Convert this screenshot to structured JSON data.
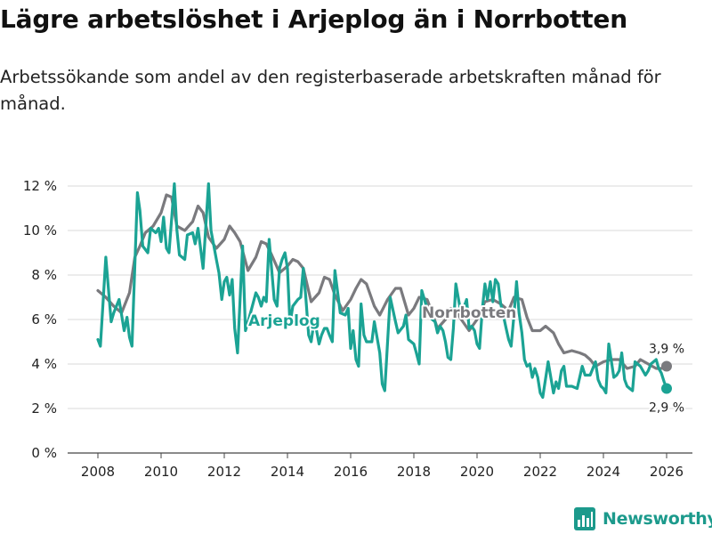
{
  "chart_data": {
    "type": "line",
    "title": "Lägre arbetslöshet i Arjeplog än i Norrbotten",
    "subtitle": "Arbetssökande som andel av den registerbaserade arbetskraften månad för månad.",
    "xlabel": "",
    "ylabel": "",
    "x_ticks": [
      "2008",
      "2010",
      "2012",
      "2014",
      "2016",
      "2018",
      "2020",
      "2022",
      "2024",
      "2026"
    ],
    "y_ticks": [
      "0 %",
      "2 %",
      "4 %",
      "6 %",
      "8 %",
      "10 %",
      "12 %"
    ],
    "xlim": [
      2007.5,
      2026.9
    ],
    "ylim": [
      0,
      12.5
    ],
    "grid": "horizontal",
    "legend": "inline labels",
    "series": [
      {
        "name": "Norrbotten",
        "color": "#7a7a7e",
        "end_label": "3,9 %",
        "points": [
          [
            2008.0,
            7.3
          ],
          [
            2008.25,
            7.0
          ],
          [
            2008.5,
            6.6
          ],
          [
            2008.75,
            6.3
          ],
          [
            2009.0,
            7.2
          ],
          [
            2009.17,
            8.8
          ],
          [
            2009.33,
            9.3
          ],
          [
            2009.5,
            9.9
          ],
          [
            2009.75,
            10.2
          ],
          [
            2010.0,
            10.8
          ],
          [
            2010.17,
            11.6
          ],
          [
            2010.33,
            11.5
          ],
          [
            2010.5,
            10.2
          ],
          [
            2010.75,
            10.0
          ],
          [
            2011.0,
            10.4
          ],
          [
            2011.17,
            11.1
          ],
          [
            2011.33,
            10.8
          ],
          [
            2011.5,
            9.7
          ],
          [
            2011.75,
            9.2
          ],
          [
            2012.0,
            9.6
          ],
          [
            2012.17,
            10.2
          ],
          [
            2012.33,
            9.9
          ],
          [
            2012.5,
            9.5
          ],
          [
            2012.75,
            8.2
          ],
          [
            2013.0,
            8.8
          ],
          [
            2013.17,
            9.5
          ],
          [
            2013.33,
            9.4
          ],
          [
            2013.5,
            8.9
          ],
          [
            2013.75,
            8.1
          ],
          [
            2014.0,
            8.4
          ],
          [
            2014.17,
            8.7
          ],
          [
            2014.33,
            8.6
          ],
          [
            2014.5,
            8.3
          ],
          [
            2014.75,
            6.8
          ],
          [
            2015.0,
            7.2
          ],
          [
            2015.17,
            7.9
          ],
          [
            2015.33,
            7.8
          ],
          [
            2015.5,
            7.1
          ],
          [
            2015.75,
            6.4
          ],
          [
            2016.0,
            6.9
          ],
          [
            2016.17,
            7.4
          ],
          [
            2016.33,
            7.8
          ],
          [
            2016.5,
            7.6
          ],
          [
            2016.75,
            6.6
          ],
          [
            2016.92,
            6.2
          ],
          [
            2017.17,
            6.9
          ],
          [
            2017.42,
            7.4
          ],
          [
            2017.58,
            7.4
          ],
          [
            2017.83,
            6.2
          ],
          [
            2018.0,
            6.5
          ],
          [
            2018.17,
            7.0
          ],
          [
            2018.42,
            6.9
          ],
          [
            2018.58,
            6.3
          ],
          [
            2018.75,
            5.6
          ],
          [
            2019.0,
            6.0
          ],
          [
            2019.17,
            6.5
          ],
          [
            2019.33,
            6.4
          ],
          [
            2019.5,
            6.0
          ],
          [
            2019.75,
            5.5
          ],
          [
            2020.0,
            6.0
          ],
          [
            2020.25,
            6.8
          ],
          [
            2020.5,
            6.9
          ],
          [
            2020.75,
            6.7
          ],
          [
            2021.0,
            6.4
          ],
          [
            2021.17,
            7.0
          ],
          [
            2021.42,
            6.9
          ],
          [
            2021.58,
            6.1
          ],
          [
            2021.75,
            5.5
          ],
          [
            2022.0,
            5.5
          ],
          [
            2022.17,
            5.7
          ],
          [
            2022.42,
            5.4
          ],
          [
            2022.58,
            4.9
          ],
          [
            2022.75,
            4.5
          ],
          [
            2023.0,
            4.6
          ],
          [
            2023.25,
            4.5
          ],
          [
            2023.42,
            4.4
          ],
          [
            2023.58,
            4.2
          ],
          [
            2023.75,
            3.9
          ],
          [
            2024.0,
            4.1
          ],
          [
            2024.25,
            4.2
          ],
          [
            2024.5,
            4.2
          ],
          [
            2024.75,
            3.8
          ],
          [
            2025.0,
            3.9
          ],
          [
            2025.17,
            4.2
          ],
          [
            2025.42,
            4.0
          ],
          [
            2025.67,
            3.8
          ],
          [
            2025.83,
            3.8
          ],
          [
            2026.0,
            3.9
          ]
        ]
      },
      {
        "name": "Arjeplog",
        "color": "#1ba394",
        "end_label": "2,9 %",
        "points": [
          [
            2008.0,
            5.1
          ],
          [
            2008.08,
            4.8
          ],
          [
            2008.25,
            8.8
          ],
          [
            2008.42,
            5.9
          ],
          [
            2008.5,
            6.3
          ],
          [
            2008.67,
            6.9
          ],
          [
            2008.83,
            5.5
          ],
          [
            2008.92,
            6.1
          ],
          [
            2009.0,
            5.2
          ],
          [
            2009.08,
            4.8
          ],
          [
            2009.25,
            11.7
          ],
          [
            2009.33,
            10.9
          ],
          [
            2009.42,
            9.3
          ],
          [
            2009.58,
            9.0
          ],
          [
            2009.67,
            10.1
          ],
          [
            2009.83,
            9.9
          ],
          [
            2009.92,
            10.1
          ],
          [
            2010.0,
            9.5
          ],
          [
            2010.08,
            10.6
          ],
          [
            2010.17,
            9.2
          ],
          [
            2010.25,
            9.0
          ],
          [
            2010.42,
            12.1
          ],
          [
            2010.5,
            10.0
          ],
          [
            2010.58,
            8.9
          ],
          [
            2010.75,
            8.7
          ],
          [
            2010.83,
            9.8
          ],
          [
            2011.0,
            9.9
          ],
          [
            2011.08,
            9.4
          ],
          [
            2011.17,
            10.1
          ],
          [
            2011.33,
            8.3
          ],
          [
            2011.5,
            12.1
          ],
          [
            2011.58,
            10.0
          ],
          [
            2011.75,
            8.7
          ],
          [
            2011.83,
            8.1
          ],
          [
            2011.92,
            6.9
          ],
          [
            2012.0,
            7.7
          ],
          [
            2012.08,
            7.9
          ],
          [
            2012.17,
            7.1
          ],
          [
            2012.25,
            7.8
          ],
          [
            2012.33,
            5.6
          ],
          [
            2012.42,
            4.5
          ],
          [
            2012.58,
            9.3
          ],
          [
            2012.67,
            5.5
          ],
          [
            2012.83,
            6.3
          ],
          [
            2013.0,
            7.2
          ],
          [
            2013.08,
            7.0
          ],
          [
            2013.17,
            6.6
          ],
          [
            2013.25,
            7.0
          ],
          [
            2013.33,
            6.8
          ],
          [
            2013.42,
            9.6
          ],
          [
            2013.58,
            6.9
          ],
          [
            2013.67,
            6.6
          ],
          [
            2013.75,
            8.3
          ],
          [
            2013.83,
            8.7
          ],
          [
            2013.92,
            9.0
          ],
          [
            2014.0,
            8.3
          ],
          [
            2014.08,
            5.8
          ],
          [
            2014.17,
            6.6
          ],
          [
            2014.33,
            6.9
          ],
          [
            2014.42,
            7.0
          ],
          [
            2014.5,
            8.3
          ],
          [
            2014.58,
            7.0
          ],
          [
            2014.67,
            5.3
          ],
          [
            2014.75,
            5.0
          ],
          [
            2014.83,
            5.8
          ],
          [
            2014.92,
            5.5
          ],
          [
            2015.0,
            4.9
          ],
          [
            2015.08,
            5.3
          ],
          [
            2015.17,
            5.6
          ],
          [
            2015.25,
            5.6
          ],
          [
            2015.33,
            5.3
          ],
          [
            2015.42,
            5.0
          ],
          [
            2015.5,
            8.2
          ],
          [
            2015.67,
            6.3
          ],
          [
            2015.83,
            6.2
          ],
          [
            2015.92,
            6.5
          ],
          [
            2016.0,
            4.7
          ],
          [
            2016.08,
            5.5
          ],
          [
            2016.17,
            4.2
          ],
          [
            2016.25,
            3.9
          ],
          [
            2016.33,
            6.7
          ],
          [
            2016.42,
            5.3
          ],
          [
            2016.5,
            5.0
          ],
          [
            2016.67,
            5.0
          ],
          [
            2016.75,
            5.9
          ],
          [
            2016.92,
            4.5
          ],
          [
            2017.0,
            3.1
          ],
          [
            2017.08,
            2.8
          ],
          [
            2017.25,
            7.0
          ],
          [
            2017.42,
            5.9
          ],
          [
            2017.5,
            5.4
          ],
          [
            2017.67,
            5.7
          ],
          [
            2017.75,
            6.2
          ],
          [
            2017.83,
            5.1
          ],
          [
            2018.0,
            4.9
          ],
          [
            2018.08,
            4.5
          ],
          [
            2018.17,
            4.0
          ],
          [
            2018.25,
            7.3
          ],
          [
            2018.42,
            6.5
          ],
          [
            2018.5,
            6.1
          ],
          [
            2018.67,
            5.9
          ],
          [
            2018.75,
            5.4
          ],
          [
            2018.83,
            5.7
          ],
          [
            2018.92,
            5.5
          ],
          [
            2019.0,
            5.0
          ],
          [
            2019.08,
            4.3
          ],
          [
            2019.17,
            4.2
          ],
          [
            2019.25,
            5.6
          ],
          [
            2019.33,
            7.6
          ],
          [
            2019.5,
            6.2
          ],
          [
            2019.67,
            6.9
          ],
          [
            2019.75,
            5.6
          ],
          [
            2019.83,
            5.7
          ],
          [
            2019.92,
            5.5
          ],
          [
            2020.0,
            4.9
          ],
          [
            2020.08,
            4.7
          ],
          [
            2020.17,
            6.5
          ],
          [
            2020.25,
            7.6
          ],
          [
            2020.33,
            6.9
          ],
          [
            2020.42,
            7.7
          ],
          [
            2020.5,
            6.8
          ],
          [
            2020.58,
            7.8
          ],
          [
            2020.67,
            7.6
          ],
          [
            2020.75,
            6.7
          ],
          [
            2020.83,
            6.2
          ],
          [
            2020.92,
            5.6
          ],
          [
            2021.0,
            5.1
          ],
          [
            2021.08,
            4.8
          ],
          [
            2021.17,
            6.2
          ],
          [
            2021.25,
            7.7
          ],
          [
            2021.33,
            6.3
          ],
          [
            2021.42,
            5.4
          ],
          [
            2021.5,
            4.2
          ],
          [
            2021.58,
            3.9
          ],
          [
            2021.67,
            4.0
          ],
          [
            2021.75,
            3.4
          ],
          [
            2021.83,
            3.8
          ],
          [
            2021.92,
            3.4
          ],
          [
            2022.0,
            2.7
          ],
          [
            2022.08,
            2.5
          ],
          [
            2022.25,
            4.1
          ],
          [
            2022.42,
            2.7
          ],
          [
            2022.5,
            3.2
          ],
          [
            2022.58,
            2.9
          ],
          [
            2022.67,
            3.7
          ],
          [
            2022.75,
            3.9
          ],
          [
            2022.83,
            3.0
          ],
          [
            2023.0,
            3.0
          ],
          [
            2023.17,
            2.9
          ],
          [
            2023.33,
            3.9
          ],
          [
            2023.42,
            3.5
          ],
          [
            2023.58,
            3.5
          ],
          [
            2023.75,
            4.1
          ],
          [
            2023.83,
            3.3
          ],
          [
            2023.92,
            3.0
          ],
          [
            2024.0,
            2.9
          ],
          [
            2024.08,
            2.7
          ],
          [
            2024.17,
            4.9
          ],
          [
            2024.33,
            3.4
          ],
          [
            2024.42,
            3.5
          ],
          [
            2024.5,
            3.7
          ],
          [
            2024.58,
            4.5
          ],
          [
            2024.67,
            3.3
          ],
          [
            2024.75,
            3.0
          ],
          [
            2024.83,
            2.9
          ],
          [
            2024.92,
            2.8
          ],
          [
            2025.0,
            4.1
          ],
          [
            2025.17,
            3.9
          ],
          [
            2025.33,
            3.5
          ],
          [
            2025.42,
            3.7
          ],
          [
            2025.5,
            4.0
          ],
          [
            2025.67,
            4.2
          ],
          [
            2025.75,
            3.8
          ],
          [
            2025.83,
            3.6
          ],
          [
            2025.92,
            3.2
          ],
          [
            2026.0,
            2.9
          ]
        ]
      }
    ]
  },
  "brand": {
    "name": "Newsworthy",
    "icon": "newsworthy-logo-icon",
    "color": "#1c9a8c"
  }
}
